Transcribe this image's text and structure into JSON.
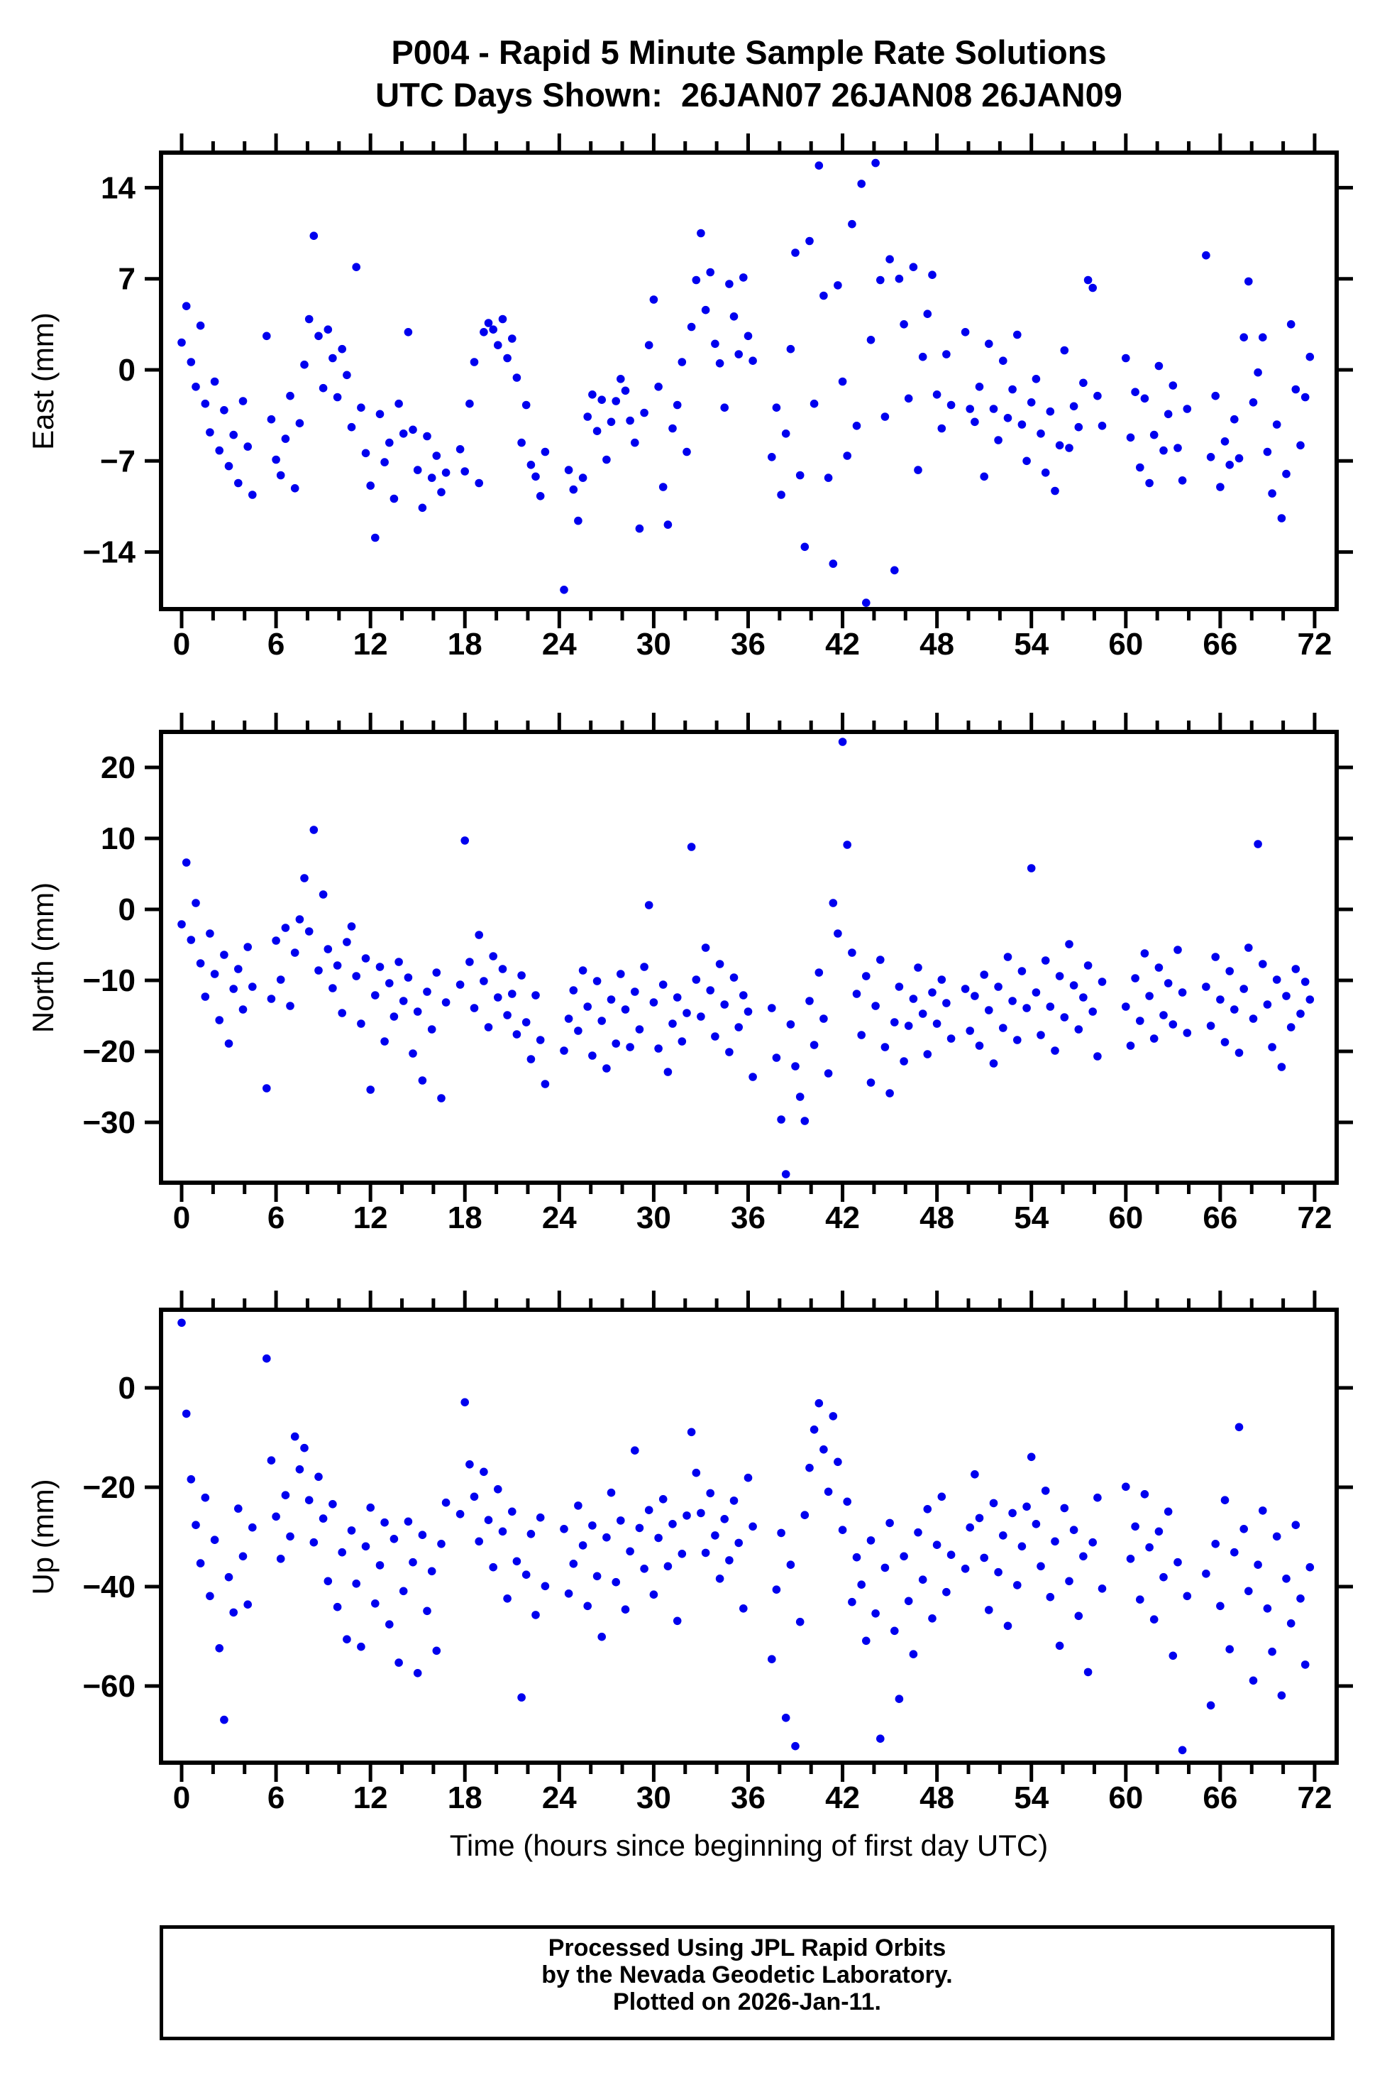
{
  "footer": {
    "line1": "Processed Using JPL Rapid Orbits",
    "line2": "by the Nevada Geodetic Laboratory.",
    "line3": "Plotted on 2026-Jan-11."
  },
  "chart_data": {
    "type": "scatter",
    "title": "P004 - Rapid 5 Minute Sample Rate Solutions",
    "subtitle": "UTC Days Shown:  26JAN07 26JAN08 26JAN09",
    "xlabel": "Time (hours since beginning of first day UTC)",
    "y_units": "mm",
    "marker_color": "#0000ee",
    "frame_color": "#000000",
    "x_ticks_major": [
      0,
      6,
      12,
      18,
      24,
      30,
      36,
      42,
      48,
      54,
      60,
      66,
      72
    ],
    "x_minor_step": 2,
    "x_range": [
      -1.3,
      73.4
    ],
    "x_start": 0.0,
    "x_step_hours": 0.3,
    "n_points": 240,
    "data_gaps_hours": [
      [
        4.6,
        5.2
      ],
      [
        16.9,
        17.6
      ],
      [
        23.2,
        24.1
      ],
      [
        36.6,
        37.2
      ],
      [
        49.0,
        49.6
      ],
      [
        58.8,
        59.9
      ],
      [
        64.2,
        64.8
      ]
    ],
    "panels": [
      {
        "ylabel": "East (mm)",
        "y_ticks": [
          14,
          7,
          0,
          -7,
          -14
        ],
        "y_range": [
          -18.4,
          16.7
        ],
        "y": [
          2.1,
          4.9,
          0.6,
          -1.3,
          3.4,
          -2.6,
          -4.8,
          -0.9,
          -6.2,
          -3.1,
          -7.4,
          -5.0,
          -8.7,
          -2.4,
          -5.9,
          -9.6,
          -4.3,
          -1.6,
          2.6,
          -3.8,
          -6.9,
          -8.1,
          -5.3,
          -2.0,
          -9.1,
          -4.1,
          0.4,
          3.9,
          10.3,
          2.6,
          -1.4,
          3.1,
          0.9,
          -2.1,
          1.6,
          -0.4,
          -4.4,
          7.9,
          -2.9,
          -6.4,
          -8.9,
          -12.9,
          -3.4,
          -7.1,
          -5.6,
          -9.9,
          -2.6,
          -4.9,
          2.9,
          -4.6,
          -7.7,
          -10.6,
          -5.1,
          -8.3,
          -6.6,
          -9.4,
          -7.9,
          -4.2,
          2.3,
          -6.1,
          -7.8,
          -2.6,
          0.6,
          -8.7,
          2.9,
          3.6,
          3.1,
          1.9,
          3.9,
          0.9,
          2.4,
          -0.6,
          -5.6,
          -2.7,
          -7.3,
          -8.2,
          -9.7,
          -6.3,
          -8.9,
          -5.4,
          -10.1,
          -16.9,
          -7.7,
          -9.2,
          -11.6,
          -8.3,
          -3.6,
          -1.9,
          -4.7,
          -2.3,
          -6.9,
          -4.0,
          -2.4,
          -0.7,
          -1.6,
          -3.9,
          -5.6,
          -12.2,
          -3.3,
          1.9,
          5.4,
          -1.3,
          -9.0,
          -11.9,
          -4.5,
          -2.7,
          0.6,
          -6.3,
          3.3,
          6.9,
          10.5,
          4.6,
          7.5,
          2.0,
          0.5,
          -2.9,
          6.6,
          4.1,
          1.2,
          7.1,
          2.6,
          0.7,
          -1.6,
          3.9,
          -3.3,
          -6.7,
          -2.9,
          -9.6,
          -4.9,
          1.6,
          9.0,
          -8.1,
          -13.6,
          9.9,
          -2.6,
          15.7,
          5.7,
          -8.3,
          -14.9,
          6.5,
          -0.9,
          -6.6,
          11.2,
          -4.3,
          14.3,
          -17.9,
          2.3,
          15.9,
          6.9,
          -3.6,
          8.5,
          -15.4,
          7.0,
          3.5,
          -2.2,
          7.9,
          -7.7,
          1.0,
          4.3,
          7.3,
          -1.9,
          -4.5,
          1.2,
          -2.7,
          0.5,
          -6.6,
          2.9,
          -3.0,
          -4.0,
          -1.3,
          -8.2,
          2.0,
          -3.0,
          -5.4,
          0.7,
          -3.7,
          -1.5,
          2.7,
          -4.2,
          -7.0,
          -2.5,
          -0.7,
          -4.9,
          -7.9,
          -3.2,
          -9.3,
          -5.8,
          1.5,
          -6.0,
          -2.8,
          -4.4,
          -1.0,
          6.9,
          6.3,
          -2.0,
          -4.3,
          -1.0,
          -6.4,
          -12.4,
          -3.5,
          0.9,
          -5.2,
          -1.7,
          -7.5,
          -2.2,
          -8.7,
          -5.0,
          0.3,
          -6.2,
          -3.4,
          -1.2,
          -6.0,
          -8.5,
          -3.0,
          -7.2,
          -10.0,
          -4.7,
          8.8,
          -6.7,
          -2.0,
          -9.0,
          -5.5,
          -7.3,
          -3.8,
          -6.8,
          2.5,
          6.8,
          -2.5,
          -0.2,
          2.5,
          -6.3,
          -9.5,
          -4.2,
          -11.4,
          -8.0,
          3.5,
          -1.5,
          -5.8,
          -2.1,
          1.0
        ]
      },
      {
        "ylabel": "North (mm)",
        "y_ticks": [
          20,
          10,
          0,
          -10,
          -20,
          -30
        ],
        "y_range": [
          -38.5,
          25.0
        ],
        "y": [
          -2.1,
          6.6,
          -4.3,
          0.9,
          -7.6,
          -12.3,
          -3.4,
          -9.1,
          -15.6,
          -6.4,
          -18.9,
          -11.2,
          -8.4,
          -14.1,
          -5.3,
          -10.9,
          -17.3,
          -7.1,
          -25.2,
          -12.6,
          -4.4,
          -9.9,
          -2.6,
          -13.6,
          -6.1,
          -1.4,
          4.4,
          -3.1,
          11.2,
          -8.6,
          2.1,
          -5.6,
          -11.1,
          -7.9,
          -14.6,
          -4.6,
          -2.4,
          -9.4,
          -16.1,
          -6.9,
          -25.4,
          -12.1,
          -8.1,
          -18.6,
          -10.4,
          -15.1,
          -7.4,
          -12.9,
          -9.6,
          -20.3,
          -14.4,
          -24.1,
          -11.6,
          -16.9,
          -8.9,
          -26.6,
          -13.1,
          -18.1,
          -5.9,
          -10.6,
          9.7,
          -7.4,
          -13.9,
          -3.6,
          -10.1,
          -16.6,
          -6.6,
          -12.4,
          -8.4,
          -14.9,
          -11.9,
          -17.6,
          -9.3,
          -15.9,
          -21.1,
          -12.1,
          -18.4,
          -24.6,
          -10.9,
          -16.4,
          -13.4,
          -19.9,
          -15.4,
          -11.4,
          -17.1,
          -8.6,
          -13.7,
          -20.6,
          -10.1,
          -15.7,
          -22.4,
          -12.7,
          -18.9,
          -9.1,
          -14.1,
          -19.4,
          -11.6,
          -16.9,
          -8.1,
          0.6,
          -13.1,
          -19.6,
          -10.6,
          -22.9,
          -16.1,
          -12.4,
          -18.6,
          -14.6,
          8.8,
          -9.9,
          -15.1,
          -5.4,
          -11.4,
          -17.9,
          -7.7,
          -13.4,
          -20.1,
          -9.6,
          -16.6,
          -12.1,
          -14.4,
          -23.6,
          -11.1,
          -17.4,
          -25.9,
          -13.9,
          -20.9,
          -29.6,
          -37.3,
          -16.2,
          -22.1,
          -26.4,
          -29.8,
          -12.9,
          -19.1,
          -8.9,
          -15.4,
          -23.1,
          0.9,
          -3.4,
          23.6,
          9.1,
          -6.1,
          -11.9,
          -17.7,
          -9.4,
          -24.4,
          -13.6,
          -7.1,
          -19.4,
          -25.9,
          -15.9,
          -10.9,
          -21.4,
          -16.4,
          -12.6,
          -8.2,
          -14.7,
          -20.4,
          -11.7,
          -16.1,
          -9.9,
          -13.2,
          -18.2,
          -7.4,
          -15.6,
          -11.2,
          -17.1,
          -12.2,
          -19.2,
          -9.2,
          -14.2,
          -21.7,
          -10.9,
          -16.7,
          -6.7,
          -12.9,
          -18.4,
          -8.7,
          -13.9,
          5.8,
          -11.7,
          -17.7,
          -7.2,
          -13.7,
          -19.9,
          -9.4,
          -15.2,
          -4.9,
          -10.7,
          -16.9,
          -12.4,
          -7.9,
          -14.4,
          -20.7,
          -10.2,
          -5.2,
          -11.9,
          -17.2,
          -8.9,
          -13.7,
          -19.2,
          -9.7,
          -15.7,
          -6.2,
          -12.2,
          -18.2,
          -8.2,
          -14.9,
          -10.4,
          -16.2,
          -5.7,
          -11.7,
          -17.4,
          -13.2,
          -9.2,
          8.6,
          -10.9,
          -16.4,
          -6.7,
          -12.7,
          -18.7,
          -8.7,
          -14.1,
          -20.2,
          -11.2,
          -5.4,
          -15.4,
          9.2,
          -7.7,
          -13.4,
          -19.4,
          -9.9,
          -22.2,
          -12.2,
          -16.6,
          -8.4,
          -14.7,
          -10.2,
          -12.7
        ]
      },
      {
        "ylabel": "Up (mm)",
        "y_ticks": [
          0,
          -20,
          -40,
          -60
        ],
        "y_range": [
          -75.4,
          15.7
        ],
        "y": [
          13.1,
          -5.2,
          -18.4,
          -27.6,
          -35.3,
          -22.1,
          -41.9,
          -30.6,
          -52.4,
          -66.8,
          -38.1,
          -45.2,
          -24.3,
          -33.9,
          -43.6,
          -28.1,
          -36.6,
          -19.3,
          5.9,
          -14.6,
          -25.9,
          -34.4,
          -21.6,
          -29.9,
          -9.8,
          -16.4,
          -12.1,
          -22.6,
          -31.1,
          -17.9,
          -26.3,
          -38.9,
          -23.4,
          -44.1,
          -33.1,
          -50.6,
          -28.7,
          -39.4,
          -52.1,
          -31.9,
          -24.1,
          -43.4,
          -35.7,
          -27.1,
          -47.6,
          -30.4,
          -55.3,
          -40.9,
          -26.9,
          -35.1,
          -57.4,
          -29.6,
          -44.9,
          -36.9,
          -52.9,
          -31.4,
          -23.1,
          -40.1,
          -33.7,
          -25.4,
          -2.9,
          -15.4,
          -21.9,
          -30.9,
          -16.9,
          -26.6,
          -36.1,
          -20.4,
          -28.9,
          -42.4,
          -24.9,
          -34.9,
          -62.3,
          -37.6,
          -29.4,
          -45.7,
          -26.1,
          -39.9,
          -55.1,
          -32.6,
          -48.4,
          -28.4,
          -41.4,
          -35.4,
          -23.7,
          -31.7,
          -43.9,
          -27.7,
          -37.9,
          -50.1,
          -30.1,
          -21.1,
          -39.1,
          -26.7,
          -44.6,
          -32.9,
          -12.6,
          -28.2,
          -36.4,
          -24.6,
          -41.6,
          -30.2,
          -22.4,
          -35.9,
          -27.4,
          -46.9,
          -33.4,
          -25.7,
          -8.9,
          -17.1,
          -25.2,
          -33.2,
          -21.2,
          -29.7,
          -38.4,
          -26.4,
          -34.7,
          -22.7,
          -31.2,
          -44.4,
          -18.1,
          -27.9,
          -36.7,
          -23.9,
          -32.4,
          -54.6,
          -40.6,
          -29.2,
          -66.4,
          -35.6,
          -72.1,
          -47.1,
          -25.6,
          -16.1,
          -8.4,
          -3.1,
          -12.4,
          -20.9,
          -5.7,
          -14.9,
          -28.6,
          -22.9,
          -43.1,
          -34.1,
          -39.6,
          -50.9,
          -30.7,
          -45.4,
          -70.6,
          -36.2,
          -27.2,
          -48.9,
          -62.6,
          -33.9,
          -42.9,
          -53.6,
          -29.1,
          -38.6,
          -24.4,
          -46.4,
          -31.6,
          -21.9,
          -41.1,
          -33.6,
          -26.9,
          -49.4,
          -36.4,
          -28.1,
          -17.4,
          -26.2,
          -34.2,
          -44.7,
          -23.2,
          -37.1,
          -29.7,
          -47.9,
          -25.2,
          -39.7,
          -31.9,
          -23.9,
          -13.9,
          -27.4,
          -35.9,
          -20.7,
          -42.1,
          -30.9,
          -51.9,
          -24.2,
          -38.9,
          -28.6,
          -45.9,
          -33.9,
          -57.2,
          -31.1,
          -22.1,
          -40.4,
          -26.6,
          -36.6,
          -48.1,
          -29.4,
          -19.9,
          -34.4,
          -27.9,
          -42.6,
          -21.4,
          -32.1,
          -46.6,
          -28.9,
          -38.1,
          -24.9,
          -53.9,
          -35.1,
          -72.9,
          -41.9,
          -30.4,
          -48.6,
          -26.1,
          -37.4,
          -63.9,
          -31.4,
          -43.9,
          -22.6,
          -52.6,
          -33.1,
          -7.9,
          -28.4,
          -40.9,
          -58.9,
          -35.6,
          -24.7,
          -44.4,
          -53.1,
          -29.9,
          -61.9,
          -38.4,
          -47.4,
          -27.6,
          -42.4,
          -55.7,
          -36.1
        ]
      }
    ]
  }
}
